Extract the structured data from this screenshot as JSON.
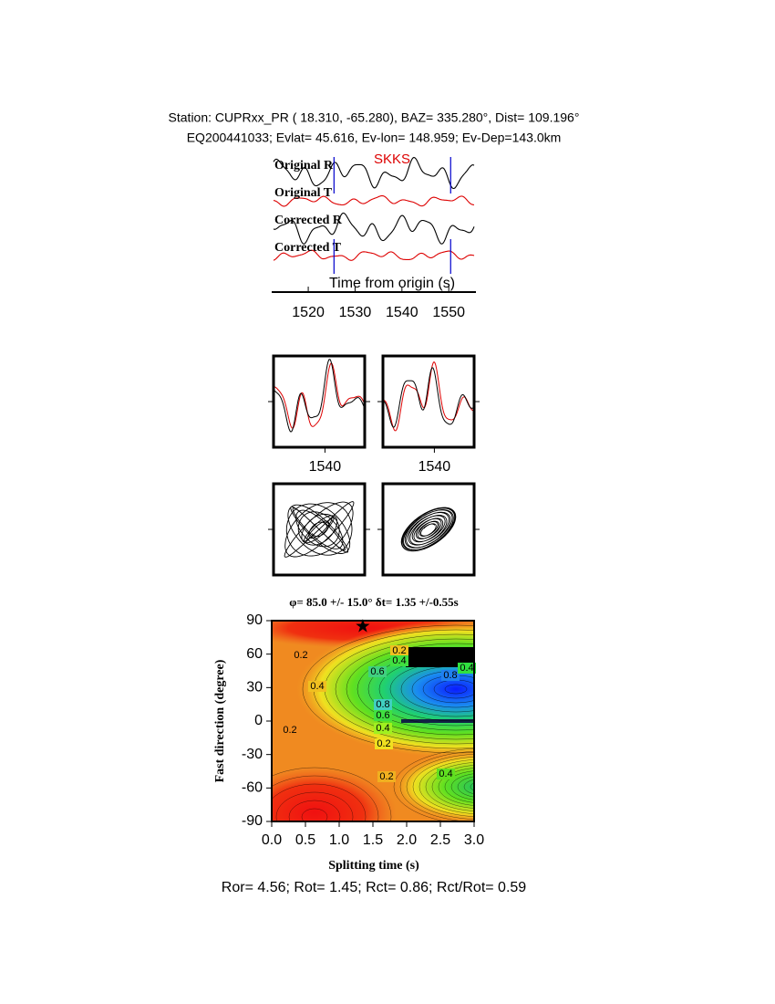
{
  "header": {
    "line1": "Station: CUPRxx_PR (  18.310,  -65.280), BAZ=  335.280°, Dist=  109.196°",
    "line2": "EQ200441033; Evlat=  45.616, Ev-lon= 148.959; Ev-Dep=143.0km"
  },
  "chart_data": [
    {
      "type": "waveform",
      "phase": "SKKS",
      "traces": [
        "Original R",
        "Original T",
        "Corrected R",
        "Corrected T"
      ],
      "trace_colors": [
        "#000000",
        "#dd0000",
        "#000000",
        "#dd0000"
      ],
      "xlabel": "Time from origin (s)",
      "xlim": [
        1512.2,
        1555.8
      ],
      "xticks": [
        1520,
        1530,
        1540,
        1550
      ],
      "window": [
        1525.5,
        1550.4
      ],
      "window_color": "#0000cc"
    },
    {
      "type": "waveform-pair",
      "xlim": [
        1529,
        1548.5
      ],
      "xticks": [
        1540
      ]
    },
    {
      "type": "waveform-pair",
      "xlim": [
        1529,
        1548.5
      ],
      "xticks": [
        1540
      ]
    },
    {
      "type": "contour",
      "title": "φ= 85.0 +/- 15.0° δt= 1.35 +/-0.55s",
      "xlabel": "Splitting time (s)",
      "ylabel": "Fast direction (degree)",
      "xlim": [
        0,
        3
      ],
      "ylim": [
        -90,
        90
      ],
      "xticks": [
        {
          "value": 0,
          "label": "0.0"
        },
        {
          "value": 0.5,
          "label": "0.5"
        },
        {
          "value": 1,
          "label": "1.0"
        },
        {
          "value": 1.5,
          "label": "1.5"
        },
        {
          "value": 2,
          "label": "2.0"
        },
        {
          "value": 2.5,
          "label": "2.5"
        },
        {
          "value": 3,
          "label": "3.0"
        }
      ],
      "yticks": [
        -90,
        -60,
        -30,
        0,
        30,
        60,
        90
      ],
      "best": {
        "x": 1.35,
        "y": 85
      },
      "contour_labels": [
        0.2,
        0.4,
        0.6,
        0.8,
        0.6,
        0.4,
        0.2,
        0.2,
        0.4,
        0.2,
        0.2,
        0.4,
        0.8,
        0.4
      ]
    }
  ],
  "footer": "Ror= 4.56; Rot= 1.45; Rct= 0.86; Rct/Rot= 0.59"
}
